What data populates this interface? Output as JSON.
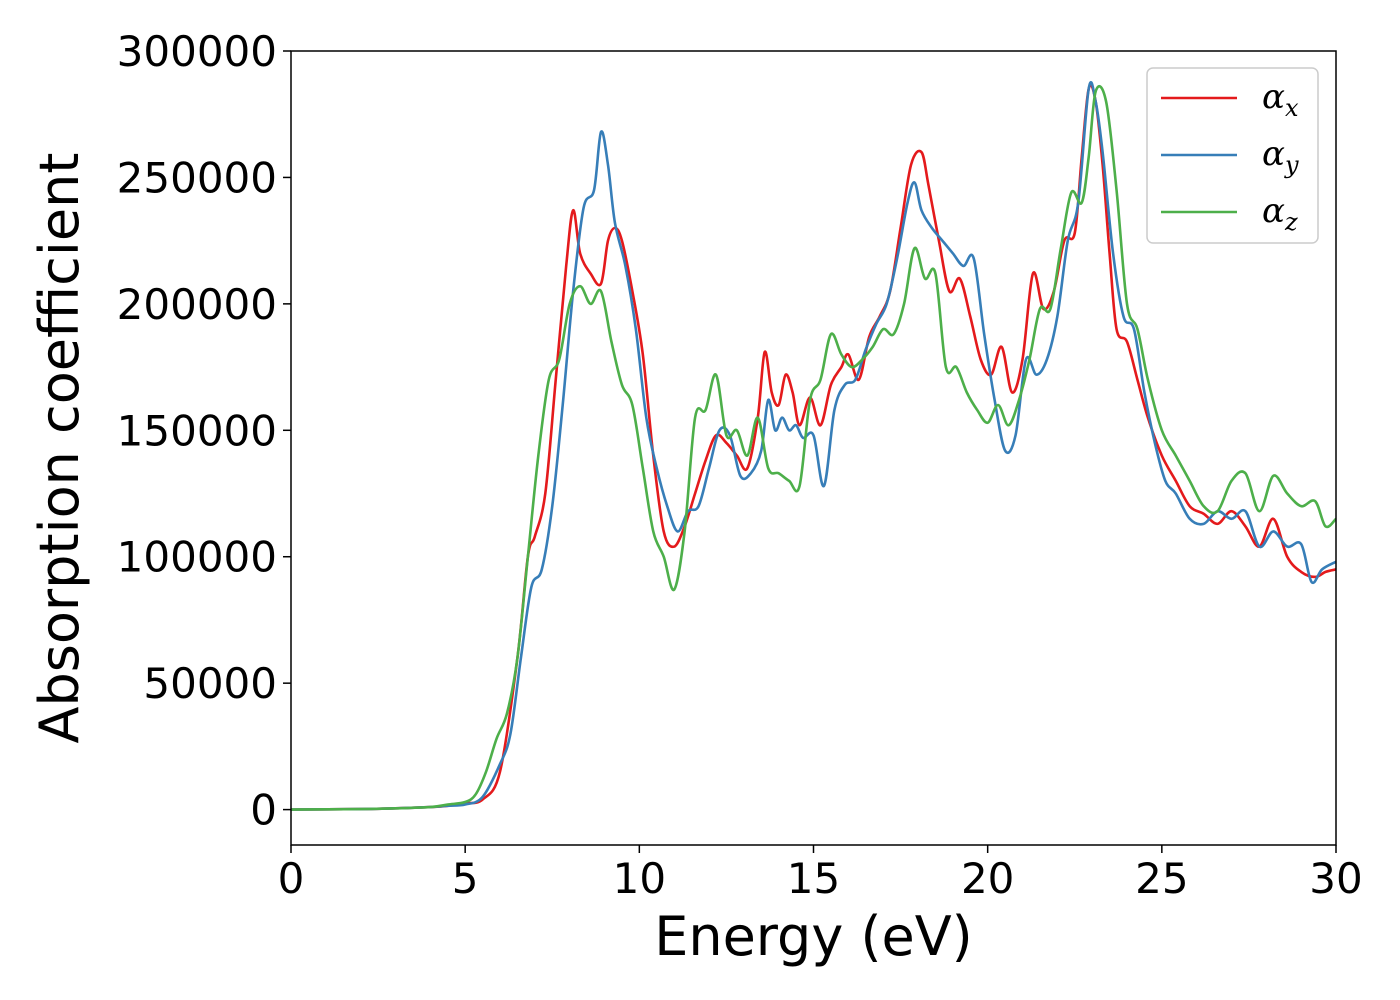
{
  "chart_data": {
    "type": "line",
    "title": "",
    "xlabel": "Energy (eV)",
    "ylabel": "Absorption coefficient",
    "xlim": [
      0,
      30
    ],
    "ylim": [
      -14000,
      300000
    ],
    "xticks": [
      0,
      5,
      10,
      15,
      20,
      25,
      30
    ],
    "yticks": [
      0,
      50000,
      100000,
      150000,
      200000,
      250000,
      300000
    ],
    "grid": false,
    "legend_position": "top-right",
    "series": [
      {
        "name": "α",
        "subscript": "x",
        "color": "#e41a1c",
        "x": [
          0,
          2,
          3,
          4,
          4.5,
          5,
          5.5,
          6,
          6.5,
          6.8,
          7,
          7.3,
          7.6,
          7.9,
          8.1,
          8.3,
          8.6,
          8.9,
          9.1,
          9.3,
          9.5,
          9.8,
          10.1,
          10.4,
          10.7,
          11,
          11.3,
          11.6,
          11.9,
          12.2,
          12.5,
          12.8,
          13.1,
          13.4,
          13.6,
          13.8,
          14.0,
          14.2,
          14.4,
          14.6,
          14.9,
          15.2,
          15.5,
          15.8,
          16.0,
          16.3,
          16.6,
          16.9,
          17.2,
          17.5,
          17.8,
          18.1,
          18.3,
          18.6,
          18.9,
          19.2,
          19.5,
          19.8,
          20.1,
          20.4,
          20.7,
          21.0,
          21.3,
          21.6,
          21.9,
          22.2,
          22.5,
          22.7,
          22.9,
          23.1,
          23.3,
          23.5,
          23.7,
          24.0,
          24.3,
          24.6,
          25.0,
          25.4,
          25.8,
          26.2,
          26.6,
          27.0,
          27.4,
          27.8,
          28.2,
          28.6,
          29.0,
          29.4,
          29.7,
          30
        ],
        "y": [
          0,
          200,
          500,
          1000,
          1500,
          2500,
          4000,
          15000,
          60000,
          100000,
          108000,
          125000,
          170000,
          215000,
          237000,
          220000,
          212000,
          208000,
          225000,
          230000,
          225000,
          205000,
          180000,
          140000,
          110000,
          104000,
          112000,
          125000,
          138000,
          148000,
          145000,
          140000,
          135000,
          155000,
          181000,
          165000,
          160000,
          172000,
          165000,
          152000,
          163000,
          152000,
          168000,
          175000,
          180000,
          170000,
          187000,
          195000,
          205000,
          230000,
          255000,
          260000,
          247000,
          225000,
          205000,
          210000,
          195000,
          178000,
          172000,
          183000,
          165000,
          178000,
          212000,
          198000,
          205000,
          225000,
          228000,
          258000,
          285000,
          280000,
          255000,
          220000,
          190000,
          185000,
          170000,
          155000,
          140000,
          130000,
          120000,
          117000,
          113000,
          118000,
          112000,
          104000,
          115000,
          100000,
          94000,
          92000,
          94000,
          95000
        ]
      },
      {
        "name": "α",
        "subscript": "y",
        "color": "#377eb8",
        "x": [
          0,
          2,
          3,
          4,
          4.5,
          5,
          5.5,
          6,
          6.3,
          6.6,
          6.9,
          7.2,
          7.5,
          7.8,
          8.1,
          8.4,
          8.7,
          8.9,
          9.1,
          9.3,
          9.6,
          9.9,
          10.2,
          10.5,
          10.8,
          11.1,
          11.4,
          11.7,
          12.0,
          12.3,
          12.6,
          12.9,
          13.2,
          13.5,
          13.7,
          13.9,
          14.1,
          14.3,
          14.5,
          14.7,
          15.0,
          15.3,
          15.6,
          15.9,
          16.2,
          16.5,
          16.8,
          17.1,
          17.4,
          17.7,
          17.9,
          18.1,
          18.4,
          18.7,
          19.0,
          19.3,
          19.6,
          19.9,
          20.2,
          20.5,
          20.8,
          21.1,
          21.4,
          21.7,
          22.0,
          22.3,
          22.6,
          22.9,
          23.1,
          23.3,
          23.6,
          23.9,
          24.2,
          24.5,
          24.8,
          25.1,
          25.4,
          25.8,
          26.2,
          26.6,
          27.0,
          27.4,
          27.8,
          28.2,
          28.6,
          29.0,
          29.3,
          29.6,
          30
        ],
        "y": [
          0,
          200,
          500,
          1000,
          1500,
          2000,
          5000,
          18000,
          30000,
          60000,
          88000,
          95000,
          120000,
          160000,
          205000,
          238000,
          245000,
          268000,
          255000,
          232000,
          215000,
          190000,
          155000,
          135000,
          120000,
          110000,
          118000,
          120000,
          135000,
          150000,
          148000,
          132000,
          133000,
          142000,
          162000,
          150000,
          155000,
          150000,
          152000,
          147000,
          148000,
          128000,
          158000,
          168000,
          170000,
          182000,
          192000,
          200000,
          218000,
          240000,
          248000,
          237000,
          230000,
          225000,
          220000,
          215000,
          218000,
          188000,
          162000,
          142000,
          148000,
          178000,
          172000,
          178000,
          195000,
          225000,
          240000,
          285000,
          280000,
          260000,
          220000,
          195000,
          190000,
          165000,
          145000,
          130000,
          125000,
          115000,
          113000,
          118000,
          115000,
          118000,
          104000,
          110000,
          104000,
          105000,
          90000,
          95000,
          98000
        ]
      },
      {
        "name": "α",
        "subscript": "z",
        "color": "#4daf4a",
        "x": [
          0,
          2,
          3,
          4,
          4.5,
          5,
          5.3,
          5.6,
          5.9,
          6.2,
          6.5,
          6.8,
          7.1,
          7.4,
          7.7,
          8.0,
          8.3,
          8.6,
          8.9,
          9.2,
          9.5,
          9.8,
          10.1,
          10.4,
          10.7,
          11.0,
          11.3,
          11.6,
          11.9,
          12.2,
          12.5,
          12.8,
          13.1,
          13.4,
          13.7,
          14.0,
          14.3,
          14.6,
          14.9,
          15.2,
          15.5,
          15.8,
          16.1,
          16.4,
          16.7,
          17.0,
          17.3,
          17.6,
          17.9,
          18.2,
          18.5,
          18.8,
          19.1,
          19.4,
          19.7,
          20.0,
          20.3,
          20.6,
          20.9,
          21.2,
          21.5,
          21.8,
          22.1,
          22.4,
          22.7,
          22.9,
          23.1,
          23.4,
          23.7,
          24.0,
          24.3,
          24.6,
          25.0,
          25.4,
          25.8,
          26.2,
          26.6,
          27.0,
          27.4,
          27.8,
          28.2,
          28.6,
          29.0,
          29.4,
          29.7,
          30
        ],
        "y": [
          0,
          200,
          500,
          1000,
          2000,
          3000,
          6000,
          15000,
          28000,
          38000,
          60000,
          100000,
          140000,
          170000,
          178000,
          200000,
          207000,
          200000,
          205000,
          185000,
          168000,
          160000,
          135000,
          110000,
          100000,
          87000,
          110000,
          155000,
          158000,
          172000,
          148000,
          150000,
          140000,
          155000,
          135000,
          133000,
          130000,
          128000,
          162000,
          170000,
          188000,
          180000,
          175000,
          178000,
          183000,
          190000,
          188000,
          200000,
          222000,
          210000,
          212000,
          175000,
          175000,
          165000,
          158000,
          153000,
          160000,
          152000,
          162000,
          178000,
          198000,
          198000,
          222000,
          244000,
          240000,
          258000,
          284000,
          280000,
          245000,
          200000,
          190000,
          170000,
          150000,
          140000,
          130000,
          120000,
          118000,
          130000,
          133000,
          118000,
          132000,
          125000,
          120000,
          122000,
          112000,
          115000
        ]
      }
    ]
  }
}
